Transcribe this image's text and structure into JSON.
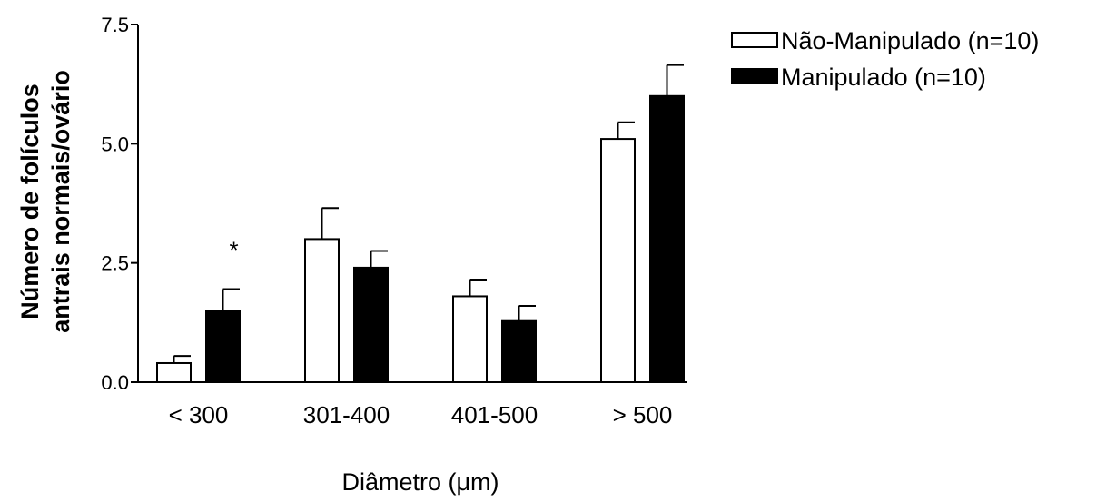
{
  "chart_data": {
    "type": "bar",
    "categories": [
      "< 300",
      "301-400",
      "401-500",
      "> 500"
    ],
    "series": [
      {
        "name": "Não-Manipulado (n=10)",
        "values": [
          0.4,
          3.0,
          1.8,
          5.1
        ],
        "errors": [
          0.15,
          0.65,
          0.35,
          0.35
        ],
        "color": "#ffffff"
      },
      {
        "name": "Manipulado (n=10)",
        "values": [
          1.5,
          2.4,
          1.3,
          6.0
        ],
        "errors": [
          0.45,
          0.35,
          0.3,
          0.65
        ],
        "color": "#000000"
      }
    ],
    "ylim": [
      0,
      7.5
    ],
    "yticks": [
      "0.0",
      "2.5",
      "5.0",
      "7.5"
    ],
    "ylabel_line1": "Número de folículos",
    "ylabel_line2": "antrais normais/ovário",
    "xlabel": "Diâmetro (μm)",
    "annotations": [
      {
        "text": "*",
        "category": 0,
        "series": 1
      }
    ],
    "legend_position": "top-right",
    "grid": false
  }
}
